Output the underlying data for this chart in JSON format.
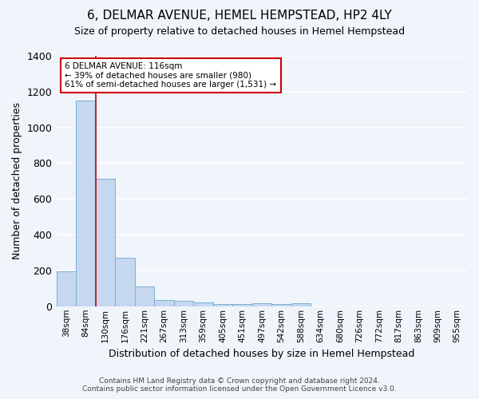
{
  "title": "6, DELMAR AVENUE, HEMEL HEMPSTEAD, HP2 4LY",
  "subtitle": "Size of property relative to detached houses in Hemel Hempstead",
  "xlabel": "Distribution of detached houses by size in Hemel Hempstead",
  "ylabel": "Number of detached properties",
  "footer1": "Contains HM Land Registry data © Crown copyright and database right 2024.",
  "footer2": "Contains public sector information licensed under the Open Government Licence v3.0.",
  "bar_labels": [
    "38sqm",
    "84sqm",
    "130sqm",
    "176sqm",
    "221sqm",
    "267sqm",
    "313sqm",
    "359sqm",
    "405sqm",
    "451sqm",
    "497sqm",
    "542sqm",
    "588sqm",
    "634sqm",
    "680sqm",
    "726sqm",
    "772sqm",
    "817sqm",
    "863sqm",
    "909sqm",
    "955sqm"
  ],
  "bar_values": [
    197,
    1148,
    713,
    271,
    109,
    35,
    28,
    22,
    12,
    12,
    15,
    13,
    15,
    0,
    0,
    0,
    0,
    0,
    0,
    0,
    0
  ],
  "bar_color": "#c5d8ef",
  "bar_edge_color": "#7aafd4",
  "bg_color": "#f0f4fb",
  "grid_color": "#ffffff",
  "property_line_x": 1.5,
  "property_line_color": "#cc0000",
  "annotation_text": "6 DELMAR AVENUE: 116sqm\n← 39% of detached houses are smaller (980)\n61% of semi-detached houses are larger (1,531) →",
  "annotation_box_color": "#ffffff",
  "annotation_border_color": "#cc0000",
  "ylim": [
    0,
    1400
  ],
  "yticks": [
    0,
    200,
    400,
    600,
    800,
    1000,
    1200,
    1400
  ],
  "title_fontsize": 11,
  "subtitle_fontsize": 9
}
